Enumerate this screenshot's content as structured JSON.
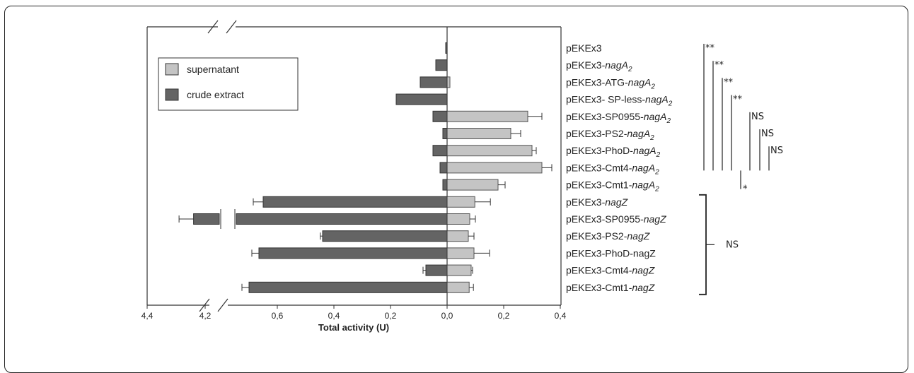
{
  "chart_data": {
    "type": "bar",
    "orientation": "horizontal",
    "xlabel": "Total activity (U)",
    "x_ticks_left": [
      "4,4",
      "4,2",
      "0,6",
      "0,4",
      "0,2",
      "0,0"
    ],
    "x_ticks_right": [
      "0,2",
      "0,4"
    ],
    "axis_break": "4,2 to 0,7",
    "legend_position": "top-left",
    "legend": [
      {
        "key": "supernatant",
        "label": "supernatant",
        "color": "#c4c4c4"
      },
      {
        "key": "crude",
        "label": "crude extract",
        "color": "#646464"
      }
    ],
    "categories": [
      {
        "prefix": "pEKEx3",
        "gene": "",
        "sub": ""
      },
      {
        "prefix": "pEKEx3-",
        "gene": "nagA",
        "sub": "2"
      },
      {
        "prefix": "pEKEx3-ATG-",
        "gene": "nagA",
        "sub": "2"
      },
      {
        "prefix": "pEKEx3- SP-less-",
        "gene": "nagA",
        "sub": "2"
      },
      {
        "prefix": "pEKEx3-SP0955-",
        "gene": "nagA",
        "sub": "2"
      },
      {
        "prefix": "pEKEx3-PS2-",
        "gene": "nagA",
        "sub": "2"
      },
      {
        "prefix": "pEKEx3-PhoD-",
        "gene": "nagA",
        "sub": "2"
      },
      {
        "prefix": "pEKEx3-Cmt4-",
        "gene": "nagA",
        "sub": "2"
      },
      {
        "prefix": "pEKEx3-Cmt1-",
        "gene": "nagA",
        "sub": "2"
      },
      {
        "prefix": "pEKEx3-",
        "gene": "nagZ",
        "sub": ""
      },
      {
        "prefix": "pEKEx3-SP0955-",
        "gene": "nagZ",
        "sub": ""
      },
      {
        "prefix": "pEKEx3-PS2-",
        "gene": "nagZ",
        "sub": ""
      },
      {
        "prefix": "pEKEx3-PhoD-nagZ",
        "gene": "",
        "sub": ""
      },
      {
        "prefix": "pEKEx3-Cmt4-",
        "gene": "nagZ",
        "sub": ""
      },
      {
        "prefix": "pEKEx3-Cmt1-",
        "gene": "nagZ",
        "sub": ""
      }
    ],
    "series": [
      {
        "name": "supernatant",
        "values": [
          0.0,
          0.0,
          0.01,
          0.0,
          0.285,
          0.225,
          0.3,
          0.335,
          0.18,
          0.098,
          0.08,
          0.075,
          0.095,
          0.085,
          0.078
        ],
        "errors": [
          0.0,
          0.0,
          0.0,
          0.0,
          0.05,
          0.035,
          0.015,
          0.035,
          0.025,
          0.055,
          0.02,
          0.02,
          0.055,
          0.005,
          0.015
        ]
      },
      {
        "name": "crude extract",
        "values": [
          0.005,
          0.04,
          0.095,
          0.18,
          0.05,
          0.015,
          0.05,
          0.025,
          0.015,
          0.65,
          4.24,
          0.44,
          0.665,
          0.075,
          0.7
        ],
        "errors": [
          0.0,
          0.0,
          0.0,
          0.0,
          0.0,
          0.0,
          0.0,
          0.0,
          0.0,
          0.035,
          0.05,
          0.008,
          0.025,
          0.01,
          0.025
        ]
      }
    ],
    "significance": [
      {
        "label": "**",
        "from": 0,
        "to": 7
      },
      {
        "label": "**",
        "from": 1,
        "to": 7
      },
      {
        "label": "**",
        "from": 2,
        "to": 7
      },
      {
        "label": "**",
        "from": 3,
        "to": 7
      },
      {
        "label": "NS",
        "from": 4,
        "to": 7
      },
      {
        "label": "NS",
        "from": 5,
        "to": 7
      },
      {
        "label": "NS",
        "from": 6,
        "to": 7
      },
      {
        "label": "*",
        "from": 7,
        "to": 8
      },
      {
        "label": "NS",
        "from": 9,
        "to": 14,
        "bracket": true
      }
    ]
  }
}
